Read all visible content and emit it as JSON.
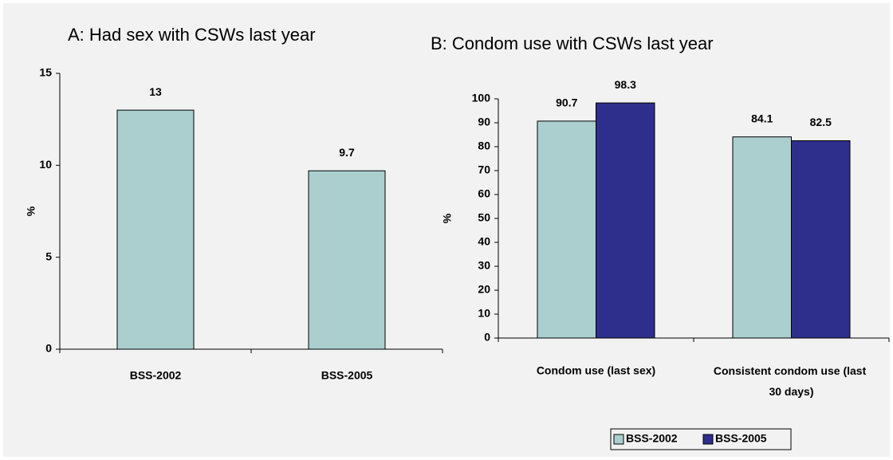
{
  "chart_data": [
    {
      "type": "bar",
      "title": "A: Had sex with CSWs last year",
      "y_label": "%",
      "categories": [
        "BSS-2002",
        "BSS-2005"
      ],
      "values": [
        13,
        9.7
      ],
      "color": "#abcfcf",
      "ylim": [
        0,
        15
      ],
      "yticks": [
        0,
        5,
        10,
        15
      ]
    },
    {
      "type": "grouped_bar",
      "title": "B: Condom use with CSWs last year",
      "y_label": "%",
      "categories": [
        "Condom use (last sex)",
        "Consistent condom use (last 30 days)"
      ],
      "series": [
        {
          "name": "BSS-2002",
          "color": "#abcfcf",
          "values": [
            90.7,
            84.1
          ]
        },
        {
          "name": "BSS-2005",
          "color": "#2e2e8c",
          "values": [
            98.3,
            82.5
          ]
        }
      ],
      "ylim": [
        0,
        100
      ],
      "yticks": [
        0,
        10,
        20,
        30,
        40,
        50,
        60,
        70,
        80,
        90,
        100
      ],
      "legend": "bottom"
    }
  ]
}
